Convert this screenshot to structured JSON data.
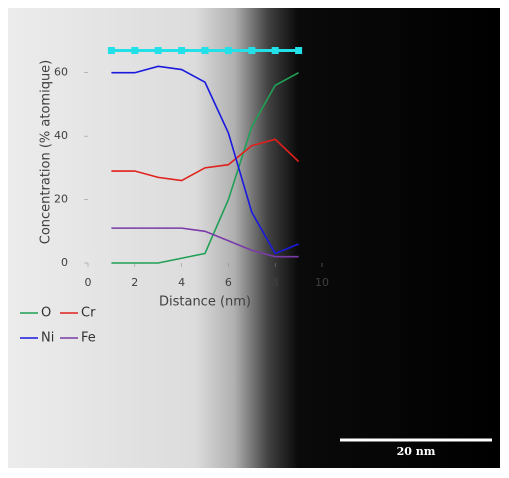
{
  "chart_data": {
    "type": "line",
    "x_label": "Distance (nm)",
    "y_label": "Concentration (% atomique)",
    "x": [
      1,
      2,
      3,
      4,
      5,
      6,
      7,
      8,
      9
    ],
    "series": [
      {
        "name": "O",
        "color": "#1fa055",
        "values": [
          0,
          0,
          0,
          1.5,
          3,
          20,
          43,
          56,
          60
        ]
      },
      {
        "name": "Cr",
        "color": "#e0201b",
        "values": [
          29,
          29,
          27,
          26,
          30,
          31,
          37,
          39,
          32
        ]
      },
      {
        "name": "Ni",
        "color": "#1a1adf",
        "values": [
          60,
          60,
          62,
          61,
          57,
          41,
          16,
          3,
          6
        ]
      },
      {
        "name": "Fe",
        "color": "#7a3aa8",
        "values": [
          11,
          11,
          11,
          11,
          10,
          7,
          4,
          2,
          2
        ]
      },
      {
        "color": "#22e0e8",
        "values": [
          67,
          67,
          67,
          67,
          67,
          67,
          67,
          67,
          67
        ]
      }
    ],
    "xlim": [
      0,
      10
    ],
    "xticks": [
      0,
      2,
      4,
      6,
      8,
      10
    ],
    "ylim": [
      0,
      70
    ],
    "yticks": [
      0,
      20,
      40,
      60
    ]
  },
  "scale_bar_label": "20 nm"
}
